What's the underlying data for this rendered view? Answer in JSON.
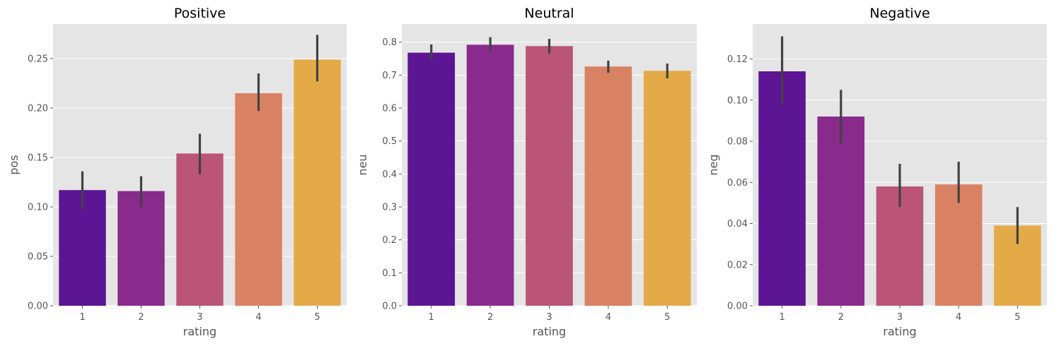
{
  "chart_data": [
    {
      "type": "bar",
      "title": "Positive",
      "xlabel": "rating",
      "ylabel": "pos",
      "categories": [
        "1",
        "2",
        "3",
        "4",
        "5"
      ],
      "values": [
        0.117,
        0.116,
        0.154,
        0.215,
        0.249
      ],
      "errors": [
        [
          0.098,
          0.136
        ],
        [
          0.1,
          0.131
        ],
        [
          0.133,
          0.174
        ],
        [
          0.197,
          0.235
        ],
        [
          0.227,
          0.274
        ]
      ],
      "ylim": [
        0,
        0.285
      ],
      "yticks": [
        0.0,
        0.05,
        0.1,
        0.15,
        0.2,
        0.25
      ],
      "ytick_labels": [
        "0.00",
        "0.05",
        "0.10",
        "0.15",
        "0.20",
        "0.25"
      ],
      "grid": true
    },
    {
      "type": "bar",
      "title": "Neutral",
      "xlabel": "rating",
      "ylabel": "neu",
      "categories": [
        "1",
        "2",
        "3",
        "4",
        "5"
      ],
      "values": [
        0.768,
        0.792,
        0.788,
        0.726,
        0.713
      ],
      "errors": [
        [
          0.745,
          0.793
        ],
        [
          0.772,
          0.815
        ],
        [
          0.765,
          0.81
        ],
        [
          0.707,
          0.744
        ],
        [
          0.69,
          0.735
        ]
      ],
      "ylim": [
        0,
        0.855
      ],
      "yticks": [
        0.0,
        0.1,
        0.2,
        0.3,
        0.4,
        0.5,
        0.6,
        0.7,
        0.8
      ],
      "ytick_labels": [
        "0.0",
        "0.1",
        "0.2",
        "0.3",
        "0.4",
        "0.5",
        "0.6",
        "0.7",
        "0.8"
      ],
      "grid": true
    },
    {
      "type": "bar",
      "title": "Negative",
      "xlabel": "rating",
      "ylabel": "neg",
      "categories": [
        "1",
        "2",
        "3",
        "4",
        "5"
      ],
      "values": [
        0.114,
        0.092,
        0.058,
        0.059,
        0.039
      ],
      "errors": [
        [
          0.098,
          0.131
        ],
        [
          0.079,
          0.105
        ],
        [
          0.048,
          0.069
        ],
        [
          0.05,
          0.07
        ],
        [
          0.03,
          0.048
        ]
      ],
      "ylim": [
        0,
        0.137
      ],
      "yticks": [
        0.0,
        0.02,
        0.04,
        0.06,
        0.08,
        0.1,
        0.12
      ],
      "ytick_labels": [
        "0.00",
        "0.02",
        "0.04",
        "0.06",
        "0.08",
        "0.10",
        "0.12"
      ],
      "grid": true
    }
  ],
  "colors": [
    "#5c1593",
    "#892a8d",
    "#ba5577",
    "#d98263",
    "#e4aa48"
  ],
  "error_bar_color": "#424242",
  "panel_background": "#e5e5e5"
}
